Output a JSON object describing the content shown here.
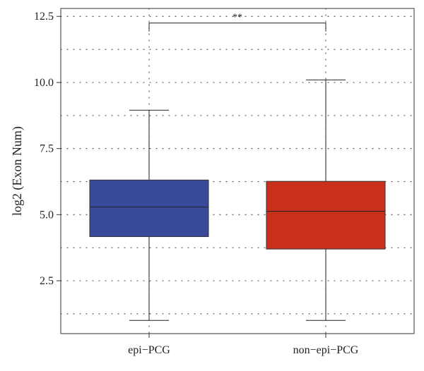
{
  "chart_data": {
    "type": "box",
    "title": "",
    "xlabel": "",
    "ylabel": "log2 (Exon Num)",
    "ylim": [
      0.5,
      12.8
    ],
    "yticks": [
      2.5,
      5.0,
      7.5,
      10.0,
      12.5
    ],
    "ytick_labels": [
      "2.5",
      "5.0",
      "7.5",
      "10.0",
      "12.5"
    ],
    "grid": "dotted",
    "categories": [
      "epi−PCG",
      "non−epi−PCG"
    ],
    "boxes": [
      {
        "label": "epi−PCG",
        "whisker_low": 1.0,
        "q1": 4.17,
        "median": 5.29,
        "q3": 6.31,
        "whisker_high": 8.95,
        "color": "#3a4a9a"
      },
      {
        "label": "non−epi−PCG",
        "whisker_low": 1.0,
        "q1": 3.7,
        "median": 5.13,
        "q3": 6.26,
        "whisker_high": 10.1,
        "color": "#c9301c"
      }
    ],
    "significance": {
      "between": [
        0,
        1
      ],
      "y": 12.25,
      "label": "**"
    }
  }
}
